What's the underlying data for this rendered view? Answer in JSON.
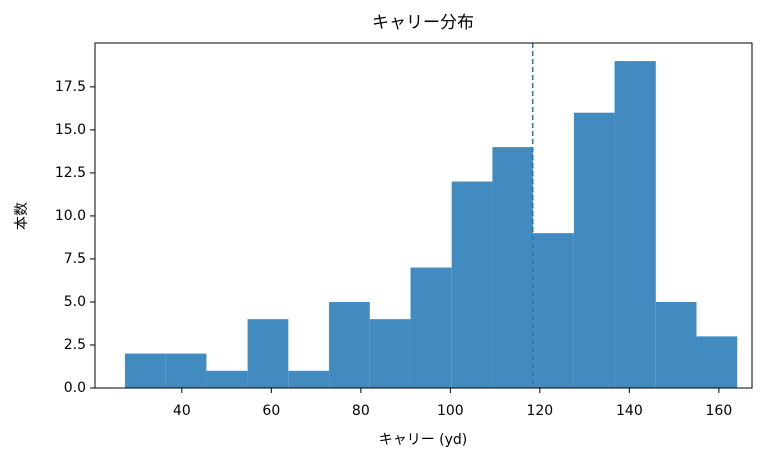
{
  "chart_data": {
    "type": "histogram",
    "title": "キャリー分布",
    "x_label": "キャリー (yd)",
    "y_label": "本数",
    "bins": [
      27.3,
      36.4,
      45.5,
      54.7,
      63.8,
      72.9,
      82.0,
      91.1,
      100.3,
      109.4,
      118.5,
      127.6,
      136.7,
      145.9,
      155.0,
      164.1
    ],
    "values": [
      2,
      2,
      1,
      4,
      1,
      5,
      4,
      7,
      12,
      14,
      9,
      16,
      19,
      5,
      3
    ],
    "color": "#428bc1",
    "xlim": [
      20.6,
      167.4
    ],
    "xticks": [
      40,
      60,
      80,
      100,
      120,
      140,
      160
    ],
    "ylim": [
      0,
      20.05
    ],
    "yticks": [
      {
        "value": 0,
        "label": "0.0"
      },
      {
        "value": 2.5,
        "label": "2.5"
      },
      {
        "value": 5,
        "label": "5.0"
      },
      {
        "value": 7.5,
        "label": "7.5"
      },
      {
        "value": 10,
        "label": "10.0"
      },
      {
        "value": 12.5,
        "label": "12.5"
      },
      {
        "value": 15,
        "label": "15.0"
      },
      {
        "value": 17.5,
        "label": "17.5"
      }
    ],
    "vline": {
      "x": 118.4,
      "color": "#1f77b4",
      "style": "dashed"
    },
    "grid": false
  }
}
